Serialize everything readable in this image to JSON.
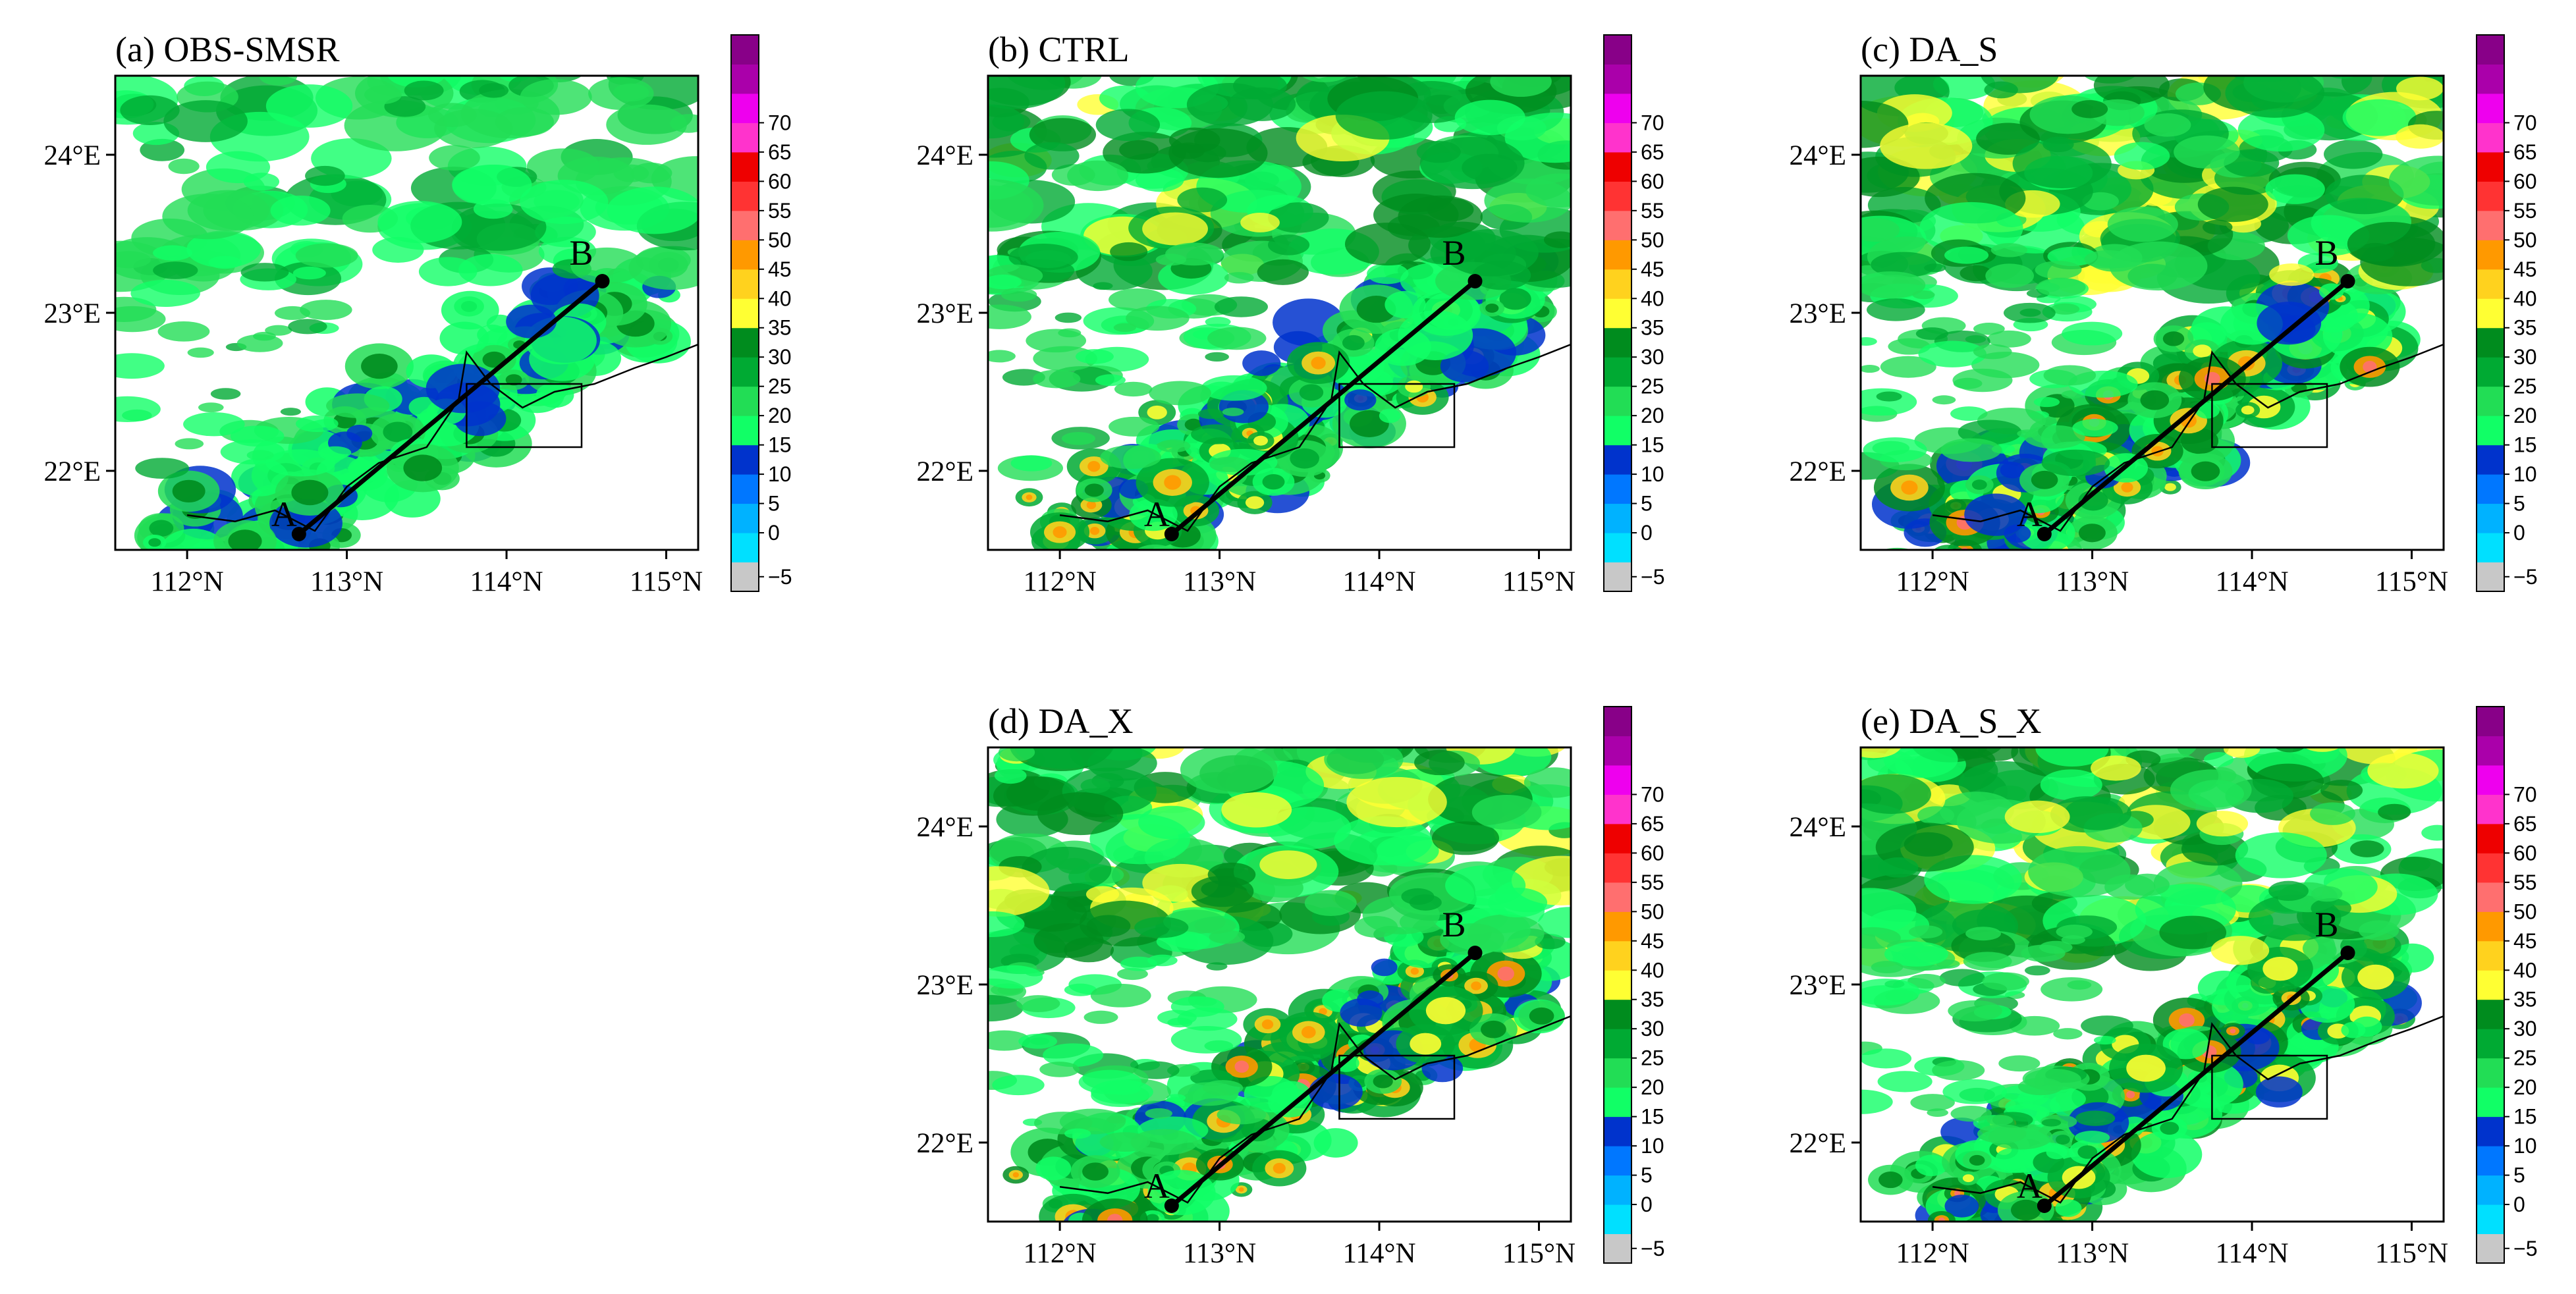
{
  "chart_data": {
    "type": "heatmap",
    "x_ticks": [
      "112°N",
      "113°N",
      "114°N",
      "115°N"
    ],
    "y_ticks": [
      "24°E",
      "23°E",
      "22°E"
    ],
    "xlim": [
      111.55,
      115.2
    ],
    "ylim": [
      21.5,
      24.5
    ],
    "colorbar": {
      "ticks": [
        "70",
        "65",
        "60",
        "55",
        "50",
        "45",
        "40",
        "35",
        "30",
        "25",
        "20",
        "15",
        "10",
        "5",
        "0",
        "-5"
      ],
      "min_label": "−5",
      "colors": [
        "#c8c8c8",
        "#00e0ff",
        "#00b2ff",
        "#0077ff",
        "#0033cc",
        "#11ff66",
        "#22dd55",
        "#00aa33",
        "#008c1e",
        "#ffff33",
        "#ffd21e",
        "#ff9900",
        "#ff6f6f",
        "#ff3333",
        "#ee0000",
        "#ff33cc",
        "#ee00ee",
        "#aa00aa",
        "#880088"
      ]
    },
    "cross_section": {
      "A_label": "A",
      "B_label": "B",
      "A": [
        112.7,
        21.6
      ],
      "B": [
        114.6,
        23.2
      ]
    },
    "panels": [
      {
        "title": "(a) OBS-SMSR",
        "intensity": 0.55
      },
      {
        "title": "(b) CTRL",
        "intensity": 0.85
      },
      {
        "title": "(c) DA_S",
        "intensity": 1.0
      },
      {
        "title": "(d) DA_X",
        "intensity": 0.95
      },
      {
        "title": "(e) DA_S_X",
        "intensity": 1.0
      }
    ]
  }
}
